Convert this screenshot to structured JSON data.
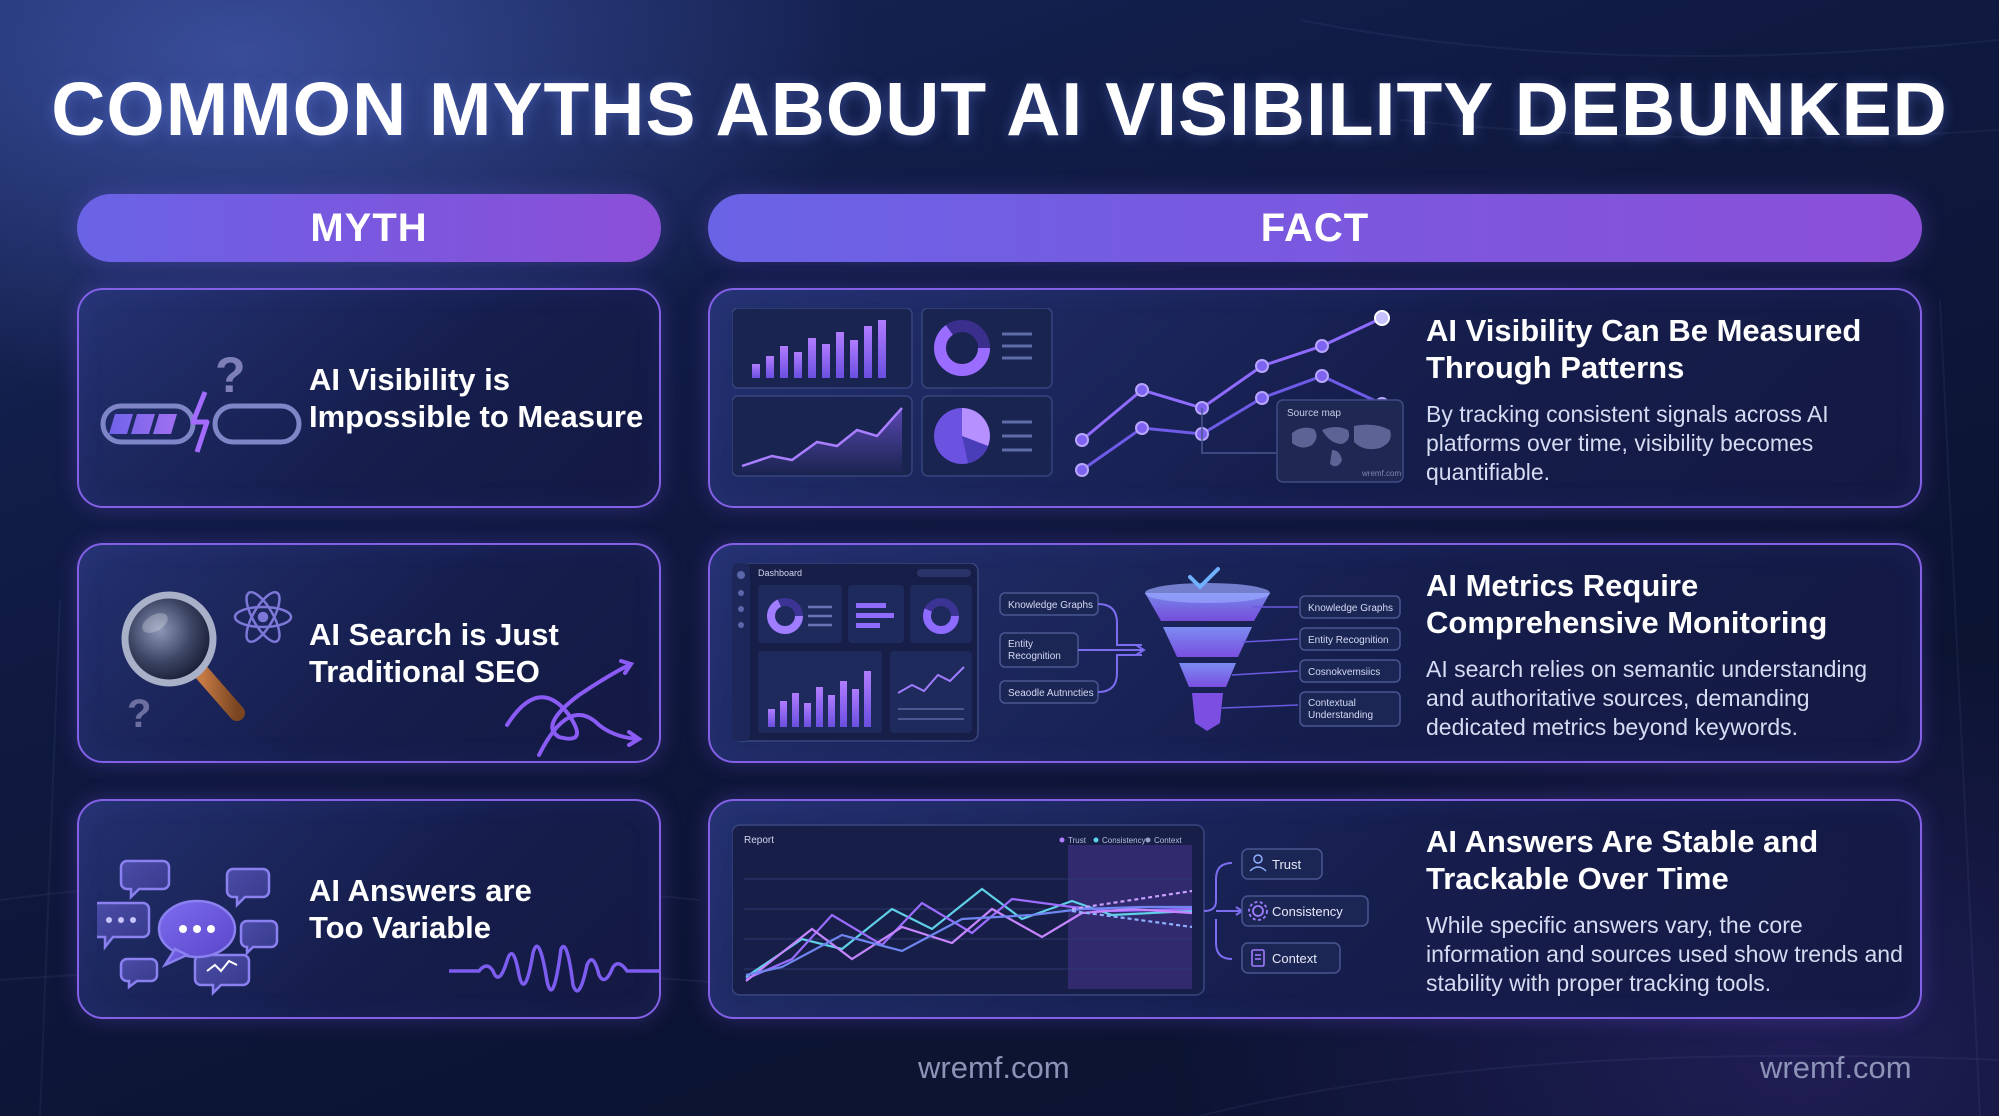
{
  "title": "COMMON MYTHS ABOUT AI VISIBILITY DEBUNKED",
  "columns": {
    "myth": "MYTH",
    "fact": "FACT"
  },
  "rows": [
    {
      "myth": {
        "line1": "AI Visibility is",
        "line2": "Impossible to Measure",
        "icon": "broken-progress-battery-icon"
      },
      "fact": {
        "title_line1": "AI Visibility Can Be Measured",
        "title_line2": "Through Patterns",
        "description": "By tracking consistent signals across AI platforms over time, visibility becomes quantifiable.",
        "visual": {
          "map_label": "Source map",
          "map_watermark": "wremf.com"
        }
      }
    },
    {
      "myth": {
        "line1": "AI Search is Just",
        "line2": "Traditional SEO",
        "icon": "magnifying-glass-icon"
      },
      "fact": {
        "title_line1": "AI Metrics Require",
        "title_line2": "Comprehensive Monitoring",
        "description": "AI search relies on semantic understanding and authoritative sources, demanding dedicated metrics beyond keywords.",
        "visual": {
          "dashboard_label": "Dashboard",
          "inputs": [
            "Knowledge Graphs",
            "Entity Recognition",
            "Seaodle Autnncties"
          ],
          "outputs": [
            "Knowledge Graphs",
            "Entity Recognition",
            "Cosnokvemsiics",
            "Contextual Understanding"
          ]
        }
      }
    },
    {
      "myth": {
        "line1": "AI Answers are",
        "line2": "Too Variable",
        "icon": "chat-bubbles-icon"
      },
      "fact": {
        "title_line1": "AI Answers Are Stable and",
        "title_line2": "Trackable Over Time",
        "description": "While specific answers vary, the core information and sources used show trends and stability with proper tracking tools.",
        "visual": {
          "report_label": "Report",
          "legend": [
            "Trust",
            "Consistency",
            "Context"
          ],
          "tags": [
            "Trust",
            "Consistency",
            "Context"
          ]
        }
      }
    }
  ],
  "footer": {
    "center": "wremf.com",
    "right": "wremf.com"
  },
  "colors": {
    "accent": "#8360e6",
    "header_start": "#6a63e6",
    "header_end": "#8c4fd8",
    "cyan": "#5fd0e8",
    "violet": "#8f6bff"
  }
}
